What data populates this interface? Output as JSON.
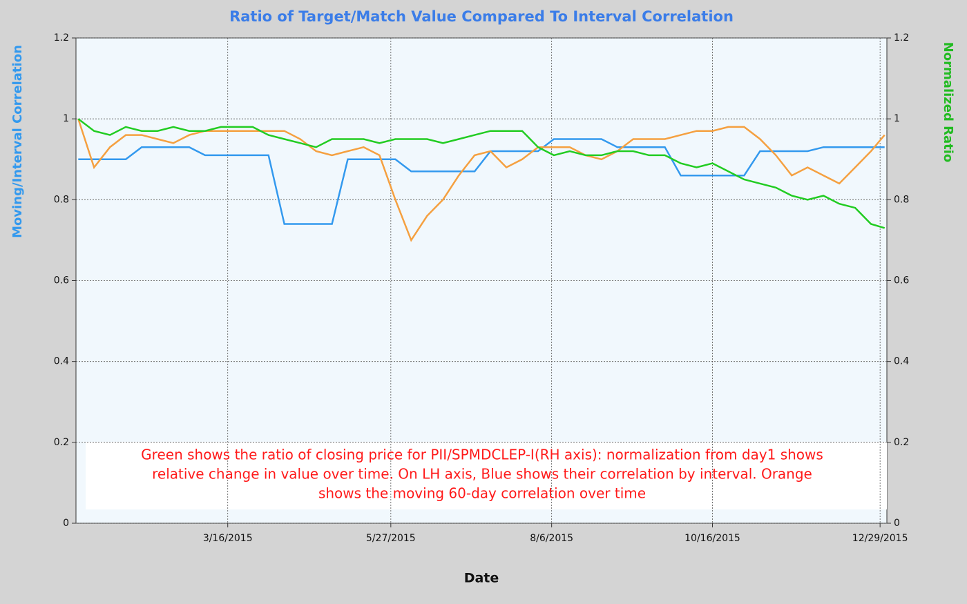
{
  "chart_data": {
    "type": "line",
    "title": "Ratio of Target/Match Value Compared To Interval Correlation",
    "xlabel": "Date",
    "ylabel": "Moving/Interval Correlation",
    "y2label": "Normalized Ratio",
    "annotation": [
      "Green shows the ratio of closing price for PII/SPMDCLEP-I(RH axis): normalization from day1 shows",
      "relative change in value over time. On LH axis, Blue shows their correlation by interval. Orange",
      "shows the moving 60-day correlation over time"
    ],
    "x": [
      "2015-01-09",
      "2015-01-16",
      "2015-01-23",
      "2015-01-30",
      "2015-02-06",
      "2015-02-13",
      "2015-02-20",
      "2015-02-27",
      "2015-03-06",
      "2015-03-13",
      "2015-03-20",
      "2015-03-27",
      "2015-04-03",
      "2015-04-10",
      "2015-04-17",
      "2015-04-24",
      "2015-05-01",
      "2015-05-08",
      "2015-05-15",
      "2015-05-22",
      "2015-05-29",
      "2015-06-05",
      "2015-06-12",
      "2015-06-19",
      "2015-06-26",
      "2015-07-03",
      "2015-07-10",
      "2015-07-17",
      "2015-07-24",
      "2015-07-31",
      "2015-08-07",
      "2015-08-14",
      "2015-08-21",
      "2015-08-28",
      "2015-09-04",
      "2015-09-11",
      "2015-09-18",
      "2015-09-25",
      "2015-10-02",
      "2015-10-09",
      "2015-10-16",
      "2015-10-23",
      "2015-10-30",
      "2015-11-06",
      "2015-11-13",
      "2015-11-20",
      "2015-11-27",
      "2015-12-04",
      "2015-12-11",
      "2015-12-18",
      "2015-12-25",
      "2015-12-31"
    ],
    "xlim": [
      "2015-01-08",
      "2016-01-01"
    ],
    "xticks": [
      "3/16/2015",
      "5/27/2015",
      "8/6/2015",
      "10/16/2015",
      "12/29/2015"
    ],
    "ylim": [
      0,
      1.2
    ],
    "yticks": [
      0,
      0.2,
      0.4,
      0.6,
      0.8,
      1,
      1.2
    ],
    "y2lim": [
      0,
      1.2
    ],
    "y2ticks": [
      0,
      0.2,
      0.4,
      0.6,
      0.8,
      1,
      1.2
    ],
    "grid": true,
    "series": [
      {
        "name": "Interval Correlation",
        "color": "#3399ee",
        "values": [
          0.9,
          0.9,
          0.9,
          0.9,
          0.93,
          0.93,
          0.93,
          0.93,
          0.91,
          0.91,
          0.91,
          0.91,
          0.91,
          0.74,
          0.74,
          0.74,
          0.74,
          0.9,
          0.9,
          0.9,
          0.9,
          0.87,
          0.87,
          0.87,
          0.87,
          0.87,
          0.92,
          0.92,
          0.92,
          0.92,
          0.95,
          0.95,
          0.95,
          0.95,
          0.93,
          0.93,
          0.93,
          0.93,
          0.86,
          0.86,
          0.86,
          0.86,
          0.86,
          0.92,
          0.92,
          0.92,
          0.92,
          0.93,
          0.93,
          0.93,
          0.93,
          0.93
        ]
      },
      {
        "name": "Moving 60-day Correlation",
        "color": "#f5a040",
        "values": [
          1.0,
          0.88,
          0.93,
          0.96,
          0.96,
          0.95,
          0.94,
          0.96,
          0.97,
          0.97,
          0.97,
          0.97,
          0.97,
          0.97,
          0.95,
          0.92,
          0.91,
          0.92,
          0.93,
          0.91,
          0.8,
          0.7,
          0.76,
          0.8,
          0.86,
          0.91,
          0.92,
          0.88,
          0.9,
          0.93,
          0.93,
          0.93,
          0.91,
          0.9,
          0.92,
          0.95,
          0.95,
          0.95,
          0.96,
          0.97,
          0.97,
          0.98,
          0.98,
          0.95,
          0.91,
          0.86,
          0.88,
          0.86,
          0.84,
          0.88,
          0.92,
          0.96
        ]
      },
      {
        "name": "Normalized Ratio",
        "color": "#22cc22",
        "axis": "y2",
        "values": [
          1.0,
          0.97,
          0.96,
          0.98,
          0.97,
          0.97,
          0.98,
          0.97,
          0.97,
          0.98,
          0.98,
          0.98,
          0.96,
          0.95,
          0.94,
          0.93,
          0.95,
          0.95,
          0.95,
          0.94,
          0.95,
          0.95,
          0.95,
          0.94,
          0.95,
          0.96,
          0.97,
          0.97,
          0.97,
          0.93,
          0.91,
          0.92,
          0.91,
          0.91,
          0.92,
          0.92,
          0.91,
          0.91,
          0.89,
          0.88,
          0.89,
          0.87,
          0.85,
          0.84,
          0.83,
          0.81,
          0.8,
          0.81,
          0.79,
          0.78,
          0.74,
          0.73
        ]
      }
    ]
  }
}
